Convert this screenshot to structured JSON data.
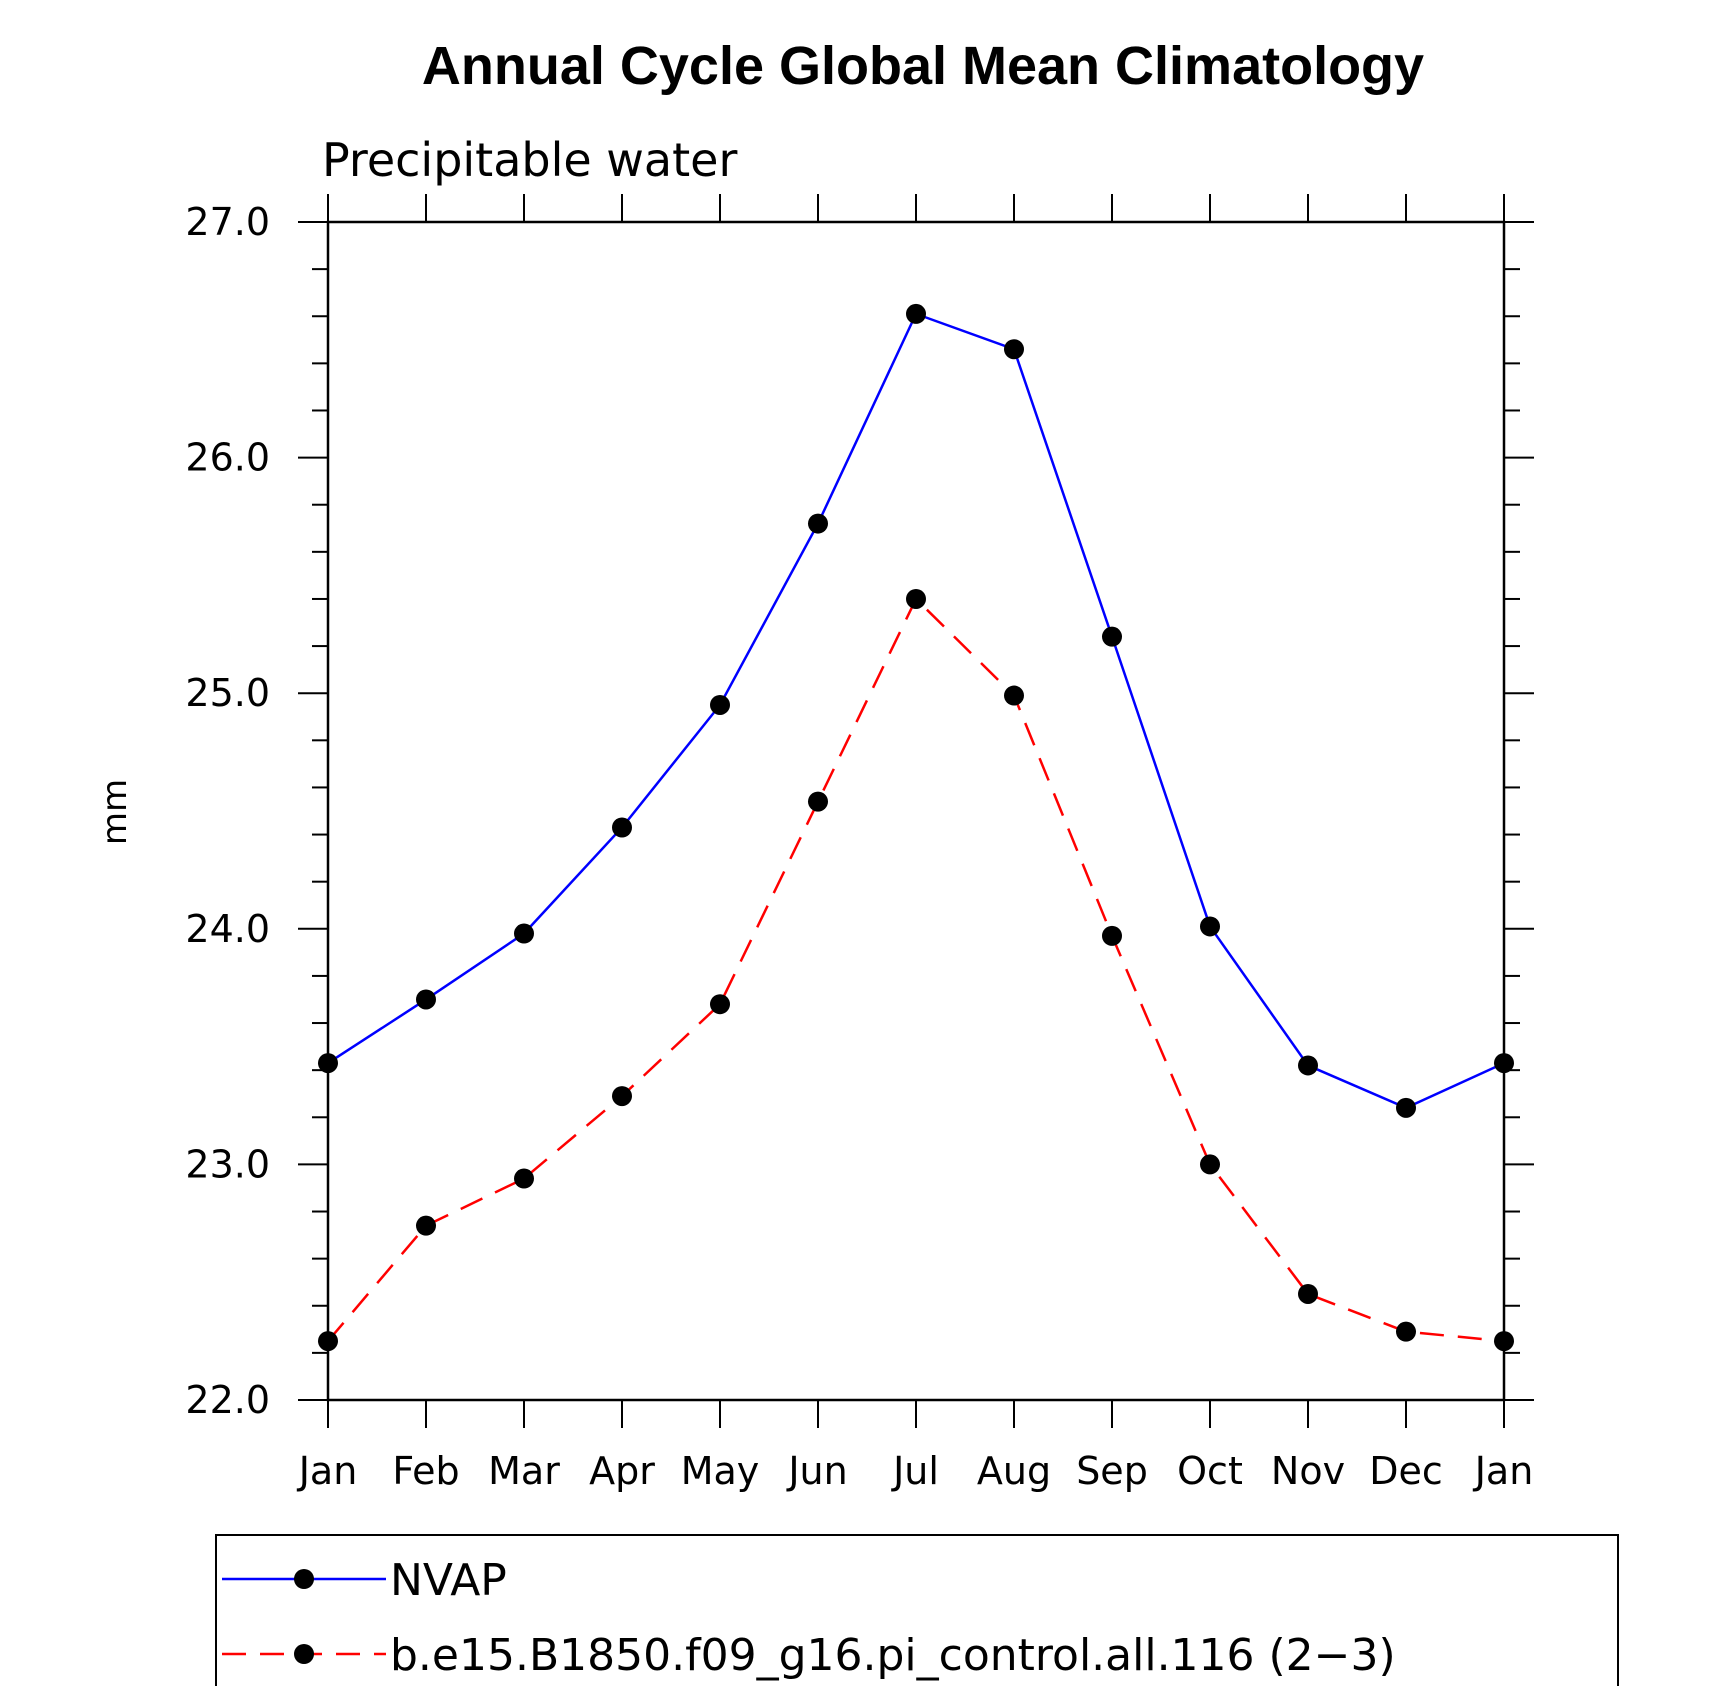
{
  "chart_data": {
    "type": "line",
    "title": "Annual Cycle Global Mean Climatology",
    "subtitle": "Precipitable water",
    "xlabel": "",
    "ylabel": "mm",
    "categories": [
      "Jan",
      "Feb",
      "Mar",
      "Apr",
      "May",
      "Jun",
      "Jul",
      "Aug",
      "Sep",
      "Oct",
      "Nov",
      "Dec",
      "Jan"
    ],
    "ylim": [
      22.0,
      27.0
    ],
    "y_ticks": [
      "22.0",
      "23.0",
      "24.0",
      "25.0",
      "26.0",
      "27.0"
    ],
    "series": [
      {
        "name": "NVAP",
        "color": "#0000ff",
        "line_style": "solid",
        "marker": "filled-circle",
        "values": [
          23.43,
          23.7,
          23.98,
          24.43,
          24.95,
          25.72,
          26.61,
          26.46,
          25.24,
          24.01,
          23.42,
          23.24,
          23.43
        ]
      },
      {
        "name": "b.e15.B1850.f09_g16.pi_control.all.116 (2-3)",
        "color": "#ff0000",
        "line_style": "dashed",
        "marker": "filled-circle",
        "values": [
          22.25,
          22.74,
          22.94,
          23.29,
          23.68,
          24.54,
          25.4,
          24.99,
          23.97,
          23.0,
          22.45,
          22.29,
          22.25
        ]
      }
    ],
    "legend": {
      "entries": [
        "NVAP",
        "b.e15.B1850.f09_g16.pi_control.all.116 (2−3)"
      ],
      "placement": "bottom"
    }
  }
}
